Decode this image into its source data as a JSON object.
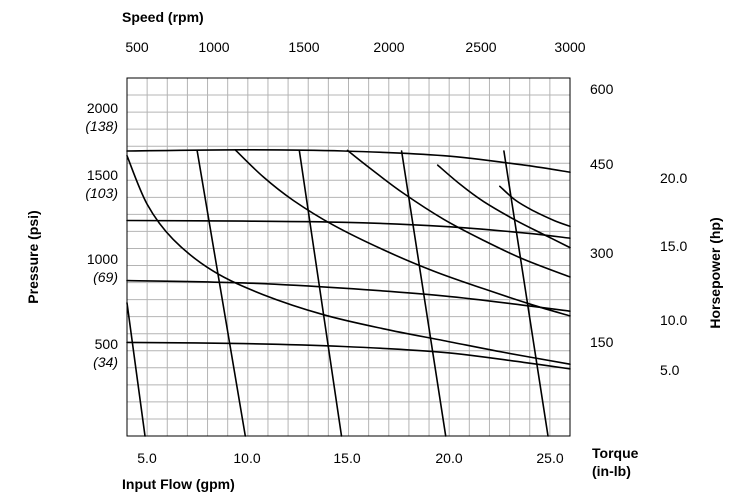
{
  "chart_data": {
    "type": "line",
    "title": "",
    "xlabel": "Input Flow (gpm)",
    "ylabel": "Pressure (psi)",
    "x_ticks": [
      "5.0",
      "10.0",
      "15.0",
      "20.0",
      "25.0"
    ],
    "xlim": [
      4.2,
      26.3
    ],
    "y_ticks": [
      {
        "value": "2000",
        "sub": "(138)"
      },
      {
        "value": "1500",
        "sub": "(103)"
      },
      {
        "value": "1000",
        "sub": "(69)"
      },
      {
        "value": "500",
        "sub": "(34)"
      }
    ],
    "ylim": [
      -420,
      2620
    ],
    "top_axis": {
      "label": "Speed (rpm)",
      "ticks": [
        "500",
        "1000",
        "1500",
        "2000",
        "2500",
        "3000"
      ]
    },
    "right_axis_torque": {
      "label_lines": [
        "Torque",
        "(in-lb)"
      ],
      "ticks": [
        "600",
        "450",
        "300",
        "150"
      ]
    },
    "right_axis_horsepower": {
      "label": "Horsepower (hp)",
      "ticks": [
        "20.0",
        "15.0",
        "10.0",
        "5.0"
      ]
    },
    "grid": true,
    "legend": "none",
    "pressure_curves": [
      {
        "x": [
          4.2,
          10,
          15,
          20,
          24,
          26.3
        ],
        "y": [
          2000,
          2010,
          2000,
          1960,
          1880,
          1820
        ]
      },
      {
        "x": [
          4.2,
          10,
          15,
          20,
          24,
          26.3
        ],
        "y": [
          1410,
          1405,
          1395,
          1360,
          1305,
          1260
        ]
      },
      {
        "x": [
          4.2,
          10,
          15,
          20,
          24,
          26.3
        ],
        "y": [
          900,
          880,
          835,
          770,
          690,
          640
        ]
      },
      {
        "x": [
          4.2,
          10,
          15,
          20,
          24,
          26.3
        ],
        "y": [
          375,
          365,
          340,
          290,
          205,
          150
        ]
      }
    ],
    "speed_lines": [
      {
        "x": [
          4.2,
          5.1
        ],
        "y": [
          710,
          -420
        ]
      },
      {
        "x": [
          7.7,
          10.1
        ],
        "y": [
          2000,
          -420
        ]
      },
      {
        "x": [
          12.8,
          14.9
        ],
        "y": [
          2000,
          -420
        ]
      },
      {
        "x": [
          17.9,
          20.1
        ],
        "y": [
          2000,
          -420
        ]
      },
      {
        "x": [
          23.0,
          25.2
        ],
        "y": [
          2000,
          -420
        ]
      }
    ],
    "horsepower_curves": [
      {
        "x": [
          4.2,
          5.2,
          6.5,
          8.5,
          11,
          14,
          17,
          20,
          23,
          26.3
        ],
        "y": [
          1960,
          1550,
          1250,
          980,
          780,
          610,
          490,
          390,
          290,
          190
        ]
      },
      {
        "x": [
          9.6,
          11,
          12.5,
          14.5,
          17,
          19.5,
          22,
          24.5,
          26.3
        ],
        "y": [
          2010,
          1780,
          1580,
          1370,
          1160,
          980,
          830,
          690,
          600
        ]
      },
      {
        "x": [
          15.2,
          16.5,
          18,
          20,
          22,
          24,
          26.3
        ],
        "y": [
          2005,
          1830,
          1640,
          1420,
          1240,
          1080,
          930
        ]
      },
      {
        "x": [
          19.7,
          20.8,
          22,
          23.5,
          25,
          26.3
        ],
        "y": [
          1880,
          1720,
          1570,
          1420,
          1290,
          1180
        ]
      },
      {
        "x": [
          22.8,
          23.6,
          24.5,
          25.5,
          26.3
        ],
        "y": [
          1700,
          1580,
          1490,
          1410,
          1360
        ]
      }
    ]
  }
}
